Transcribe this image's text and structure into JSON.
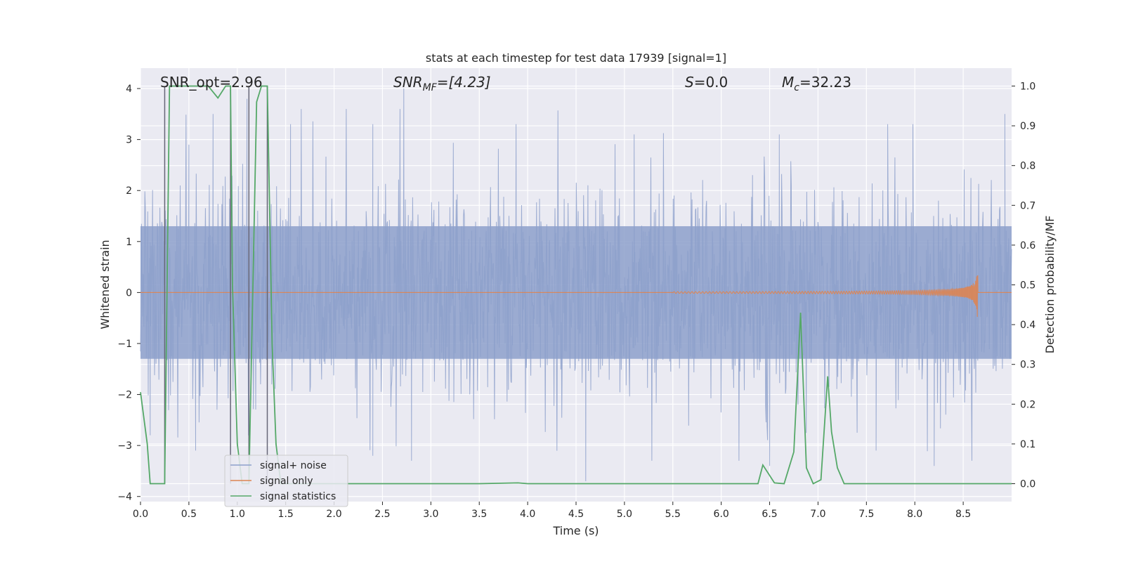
{
  "chart_data": {
    "type": "line",
    "title": "stats at each timestep for test data 17939 [signal=1]",
    "xlabel": "Time (s)",
    "ylabel": "Whitened strain",
    "y2label": "Detection probability/MF",
    "xlim": [
      0.0,
      9.0
    ],
    "ylim": [
      -4.1,
      4.4
    ],
    "y2lim": [
      -0.045,
      1.045
    ],
    "x_ticks": [
      "0.0",
      "0.5",
      "1.0",
      "1.5",
      "2.0",
      "2.5",
      "3.0",
      "3.5",
      "4.0",
      "4.5",
      "5.0",
      "5.5",
      "6.0",
      "6.5",
      "7.0",
      "7.5",
      "8.0",
      "8.5"
    ],
    "y_ticks": [
      "4",
      "3",
      "2",
      "1",
      "0",
      "−1",
      "−2",
      "−3",
      "−4"
    ],
    "y2_ticks": [
      "1.0",
      "0.9",
      "0.8",
      "0.7",
      "0.6",
      "0.5",
      "0.4",
      "0.3",
      "0.2",
      "0.1",
      "0.0"
    ],
    "grid": true,
    "legend_position": "lower-left",
    "annotations": {
      "snr_opt": "SNR_opt=2.96",
      "snr_mf_main": "SNR",
      "snr_mf_sub": "MF",
      "snr_mf_rest": "=[4.23]",
      "s_main": "S",
      "s_rest": "=0.0",
      "mc_main": "M",
      "mc_sub": "c",
      "mc_rest": "=32.23"
    },
    "series": [
      {
        "name": "signal+ noise",
        "color": "#8da0cb",
        "description_values": "noise envelope",
        "noise_band": {
          "core_min": -1.3,
          "core_max": 1.3,
          "peak_min": -3.6,
          "peak_max": 4.0
        },
        "peaks_top": [
          [
            0.5,
            2.9
          ],
          [
            0.75,
            3.5
          ],
          [
            1.1,
            3.8
          ],
          [
            1.55,
            3.3
          ],
          [
            2.4,
            3.3
          ],
          [
            2.72,
            4.0
          ],
          [
            3.88,
            3.3
          ],
          [
            5.1,
            3.1
          ],
          [
            6.6,
            3.1
          ],
          [
            7.72,
            3.3
          ],
          [
            7.98,
            3.3
          ],
          [
            8.93,
            3.5
          ]
        ],
        "peaks_bottom": [
          [
            0.1,
            -2.8
          ],
          [
            0.57,
            -3.1
          ],
          [
            2.4,
            -3.2
          ],
          [
            2.8,
            -3.3
          ],
          [
            4.6,
            -3.7
          ],
          [
            6.5,
            -3.4
          ],
          [
            7.6,
            -3.1
          ],
          [
            8.2,
            -3.4
          ]
        ]
      },
      {
        "name": "signal only",
        "color": "#dd8452",
        "chirp": {
          "start": 5.5,
          "end": 8.65,
          "max_amp": 0.68
        }
      },
      {
        "name": "signal statistics",
        "color": "#55a868",
        "x": [
          0.0,
          0.07,
          0.1,
          0.25,
          0.3,
          0.35,
          0.7,
          0.8,
          0.88,
          0.93,
          0.95,
          1.0,
          1.05,
          1.1,
          1.12,
          1.2,
          1.25,
          1.31,
          1.36,
          1.4,
          1.45,
          1.5,
          3.0,
          3.5,
          3.9,
          4.0,
          6.0,
          6.38,
          6.43,
          6.55,
          6.65,
          6.75,
          6.82,
          6.88,
          6.95,
          7.03,
          7.1,
          7.14,
          7.2,
          7.27,
          7.35,
          9.0
        ],
        "values": [
          0.23,
          0.1,
          0.0,
          0.0,
          1.0,
          1.0,
          1.0,
          0.97,
          1.0,
          1.0,
          0.5,
          0.1,
          0.0,
          0.0,
          0.0,
          0.96,
          1.0,
          1.0,
          0.35,
          0.1,
          0.0,
          0.0,
          0.0,
          0.0,
          0.002,
          0.0,
          0.0,
          0.0,
          0.047,
          0.002,
          0.0,
          0.08,
          0.43,
          0.04,
          0.0,
          0.01,
          0.27,
          0.13,
          0.04,
          0.0,
          0.0,
          0.0
        ]
      }
    ],
    "vertical_lines": [
      0.25,
      0.93,
      1.12,
      1.31
    ],
    "noise_seed": 17939
  }
}
